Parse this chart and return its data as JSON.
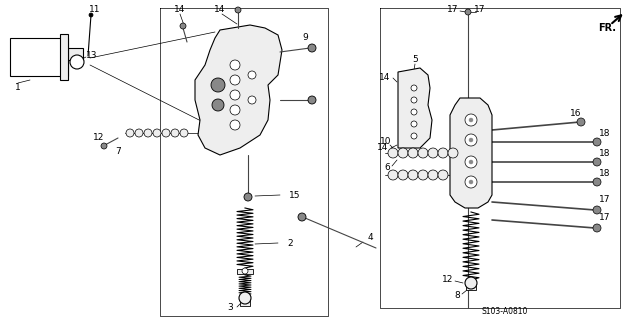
{
  "bg_color": "#ffffff",
  "fig_width": 6.4,
  "fig_height": 3.19,
  "dpi": 100,
  "diagram_code": "S103-A0810",
  "lw_thin": 0.5,
  "lw_med": 0.8,
  "lw_thick": 1.2,
  "label_fs": 6.5,
  "gray_dark": "#444444",
  "gray_mid": "#888888",
  "gray_light": "#cccccc",
  "gray_lighter": "#eeeeee"
}
